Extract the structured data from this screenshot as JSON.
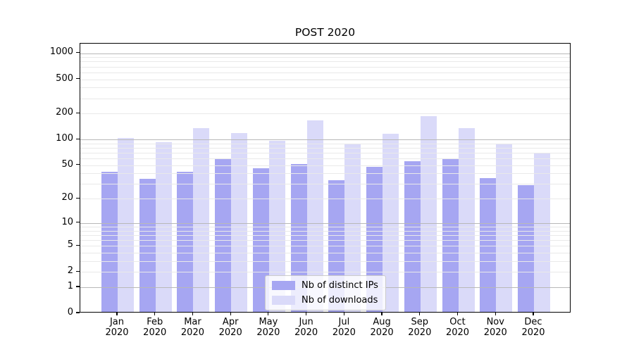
{
  "figure": {
    "title": "POST 2020"
  },
  "colors": {
    "distinct_ips": "#a6a6f2",
    "downloads": "#dadaf9",
    "grid_major": "#b8b8b8",
    "grid_minor": "#e9e9e9",
    "axis": "#000000",
    "background": "#ffffff"
  },
  "y_axis": {
    "tick_labels": [
      "0",
      "1",
      "2",
      "5",
      "10",
      "20",
      "50",
      "100",
      "200",
      "500",
      "1000"
    ],
    "minor_grid_values": [
      2,
      3,
      4,
      5,
      6,
      7,
      8,
      9,
      20,
      30,
      40,
      50,
      60,
      70,
      80,
      90,
      200,
      300,
      400,
      500,
      600,
      700,
      800,
      900
    ],
    "major_grid_values": [
      1,
      10,
      100,
      1000
    ]
  },
  "x_axis": {
    "months": [
      "Jan",
      "Feb",
      "Mar",
      "Apr",
      "May",
      "Jun",
      "Jul",
      "Aug",
      "Sep",
      "Oct",
      "Nov",
      "Dec"
    ],
    "year": "2020"
  },
  "legend": {
    "items": [
      {
        "label": "Nb of distinct IPs",
        "color": "#a6a6f2"
      },
      {
        "label": "Nb of downloads",
        "color": "#dadaf9"
      }
    ]
  },
  "chart_data": {
    "type": "bar",
    "title": "POST 2020",
    "categories": [
      "Jan 2020",
      "Feb 2020",
      "Mar 2020",
      "Apr 2020",
      "May 2020",
      "Jun 2020",
      "Jul 2020",
      "Aug 2020",
      "Sep 2020",
      "Oct 2020",
      "Nov 2020",
      "Dec 2020"
    ],
    "series": [
      {
        "name": "Nb of distinct IPs",
        "color": "#a6a6f2",
        "values": [
          40,
          33,
          40,
          58,
          44,
          50,
          32,
          46,
          54,
          58,
          34,
          28
        ]
      },
      {
        "name": "Nb of downloads",
        "color": "#dadaf9",
        "values": [
          100,
          90,
          130,
          115,
          93,
          160,
          85,
          113,
          180,
          130,
          84,
          68
        ]
      }
    ],
    "yscale": "log1p",
    "ylim": [
      0,
      1290
    ],
    "yticks": [
      0,
      1,
      2,
      5,
      10,
      20,
      50,
      100,
      200,
      500,
      1000
    ],
    "grid": "horizontal, major and minor, drawn over bars",
    "legend_position": "lower-center"
  }
}
